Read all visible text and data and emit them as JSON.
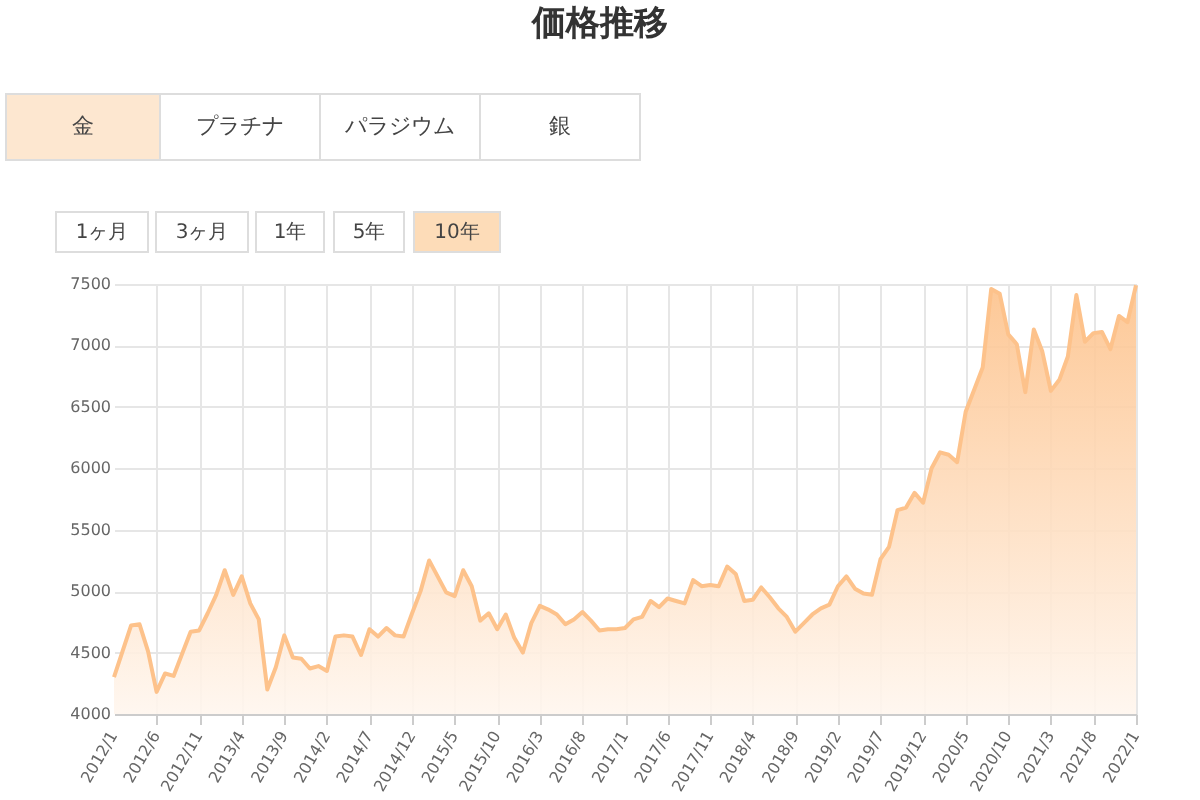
{
  "chart_data": {
    "type": "area",
    "title": "価格推移",
    "annotations": [
      "金",
      "プラチナ",
      "パラジウム",
      "銀",
      "1ヶ月",
      "3ヶ月",
      "1年",
      "5年",
      "10年"
    ],
    "categories": [
      "2012/1",
      null,
      null,
      null,
      null,
      "2012/6",
      null,
      null,
      null,
      null,
      "2012/11",
      null,
      null,
      null,
      null,
      "2013/4",
      null,
      null,
      null,
      null,
      "2013/9",
      null,
      null,
      null,
      null,
      "2014/2",
      null,
      null,
      null,
      null,
      "2014/7",
      null,
      null,
      null,
      null,
      "2014/12",
      null,
      null,
      null,
      null,
      "2015/5",
      null,
      null,
      null,
      null,
      "2015/10",
      null,
      null,
      null,
      null,
      "2016/3",
      null,
      null,
      null,
      null,
      "2016/8",
      null,
      null,
      null,
      null,
      "2017/1",
      null,
      null,
      null,
      null,
      "2017/6",
      null,
      null,
      null,
      null,
      "2017/11",
      null,
      null,
      null,
      null,
      "2018/4",
      null,
      null,
      null,
      null,
      "2018/9",
      null,
      null,
      null,
      null,
      "2019/2",
      null,
      null,
      null,
      null,
      "2019/7",
      null,
      null,
      null,
      null,
      "2019/12",
      null,
      null,
      null,
      null,
      "2020/5",
      null,
      null,
      null,
      null,
      "2020/10",
      null,
      null,
      null,
      null,
      "2021/3",
      null,
      null,
      null,
      null,
      "2021/8",
      null,
      null,
      null,
      null,
      "2022/1"
    ],
    "series": [
      {
        "color": "#fdc28b",
        "values": [
          4300,
          4510,
          4720,
          4730,
          4510,
          4180,
          4330,
          4310,
          4490,
          4670,
          4680,
          4820,
          4970,
          5170,
          4970,
          5120,
          4900,
          4770,
          4200,
          4380,
          4640,
          4460,
          4450,
          4370,
          4390,
          4350,
          4630,
          4640,
          4630,
          4480,
          4690,
          4630,
          4700,
          4640,
          4630,
          4820,
          5000,
          5250,
          5120,
          4990,
          4960,
          5170,
          5040,
          4760,
          4820,
          4690,
          4810,
          4620,
          4500,
          4740,
          4880,
          4850,
          4810,
          4730,
          4770,
          4830,
          4760,
          4680,
          4690,
          4690,
          4700,
          4770,
          4790,
          4920,
          4870,
          4940,
          4920,
          4900,
          5090,
          5040,
          5050,
          5040,
          5200,
          5140,
          4920,
          4930,
          5030,
          4950,
          4860,
          4790,
          4670,
          4740,
          4810,
          4860,
          4890,
          5040,
          5120,
          5020,
          4980,
          4970,
          5260,
          5360,
          5660,
          5680,
          5800,
          5720,
          6000,
          6130,
          6110,
          6050,
          6460,
          6640,
          6820,
          7460,
          7420,
          7090,
          7010,
          6620,
          7130,
          6950,
          6630,
          6720,
          6910,
          7410,
          7030,
          7100,
          7110,
          6970,
          7240,
          7190,
          7490
        ]
      }
    ],
    "ylim": [
      4000,
      7500
    ],
    "yticks": [
      4000,
      4500,
      5000,
      5500,
      6000,
      6500,
      7000,
      7500
    ],
    "grid": true
  }
}
